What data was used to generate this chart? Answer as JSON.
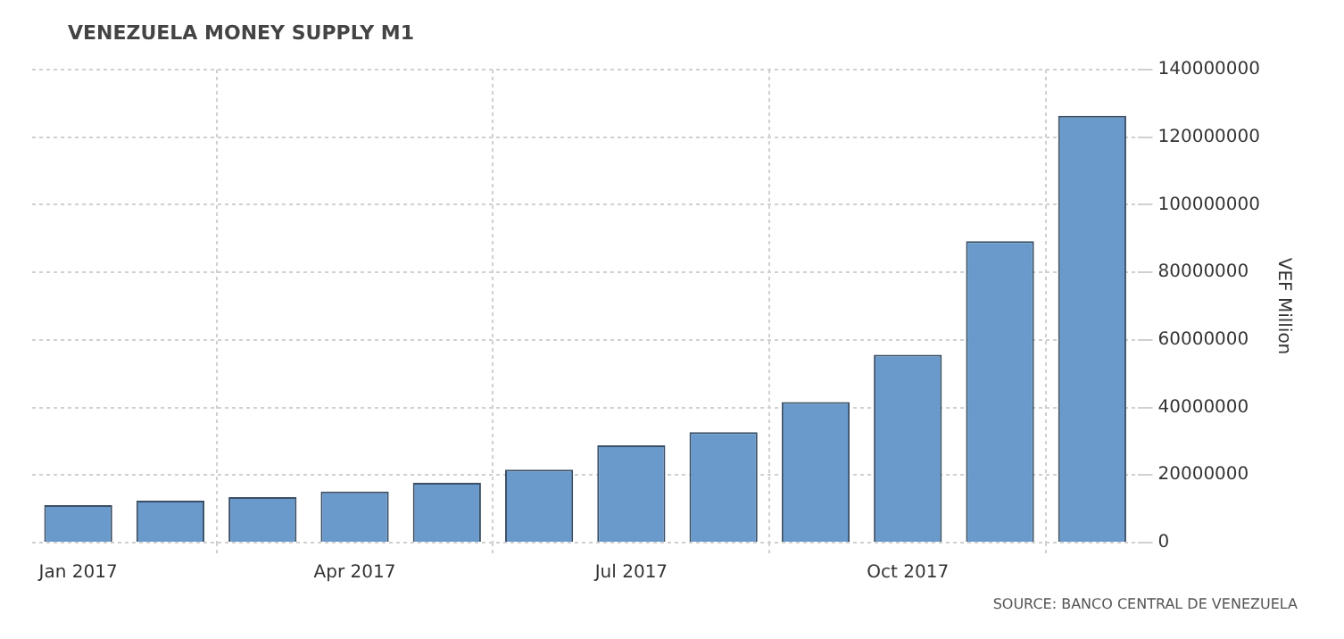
{
  "chart_data": {
    "type": "bar",
    "title": "VENEZUELA MONEY SUPPLY M1",
    "ylabel": "VEF Million",
    "categories": [
      "Jan 2017",
      null,
      null,
      "Apr 2017",
      null,
      null,
      "Jul 2017",
      null,
      null,
      "Oct 2017",
      null,
      null
    ],
    "values": [
      11100000,
      12400000,
      13500000,
      15100000,
      17700000,
      21600000,
      28800000,
      32700000,
      41600000,
      55600000,
      89200000,
      126300000
    ],
    "color": "#6a9acb",
    "ylim": [
      0,
      140000000
    ],
    "yticks": [
      0,
      20000000,
      40000000,
      60000000,
      80000000,
      100000000,
      120000000,
      140000000
    ],
    "grid": true,
    "annotations": [
      "SOURCE: BANCO CENTRAL DE VENEZUELA"
    ]
  }
}
